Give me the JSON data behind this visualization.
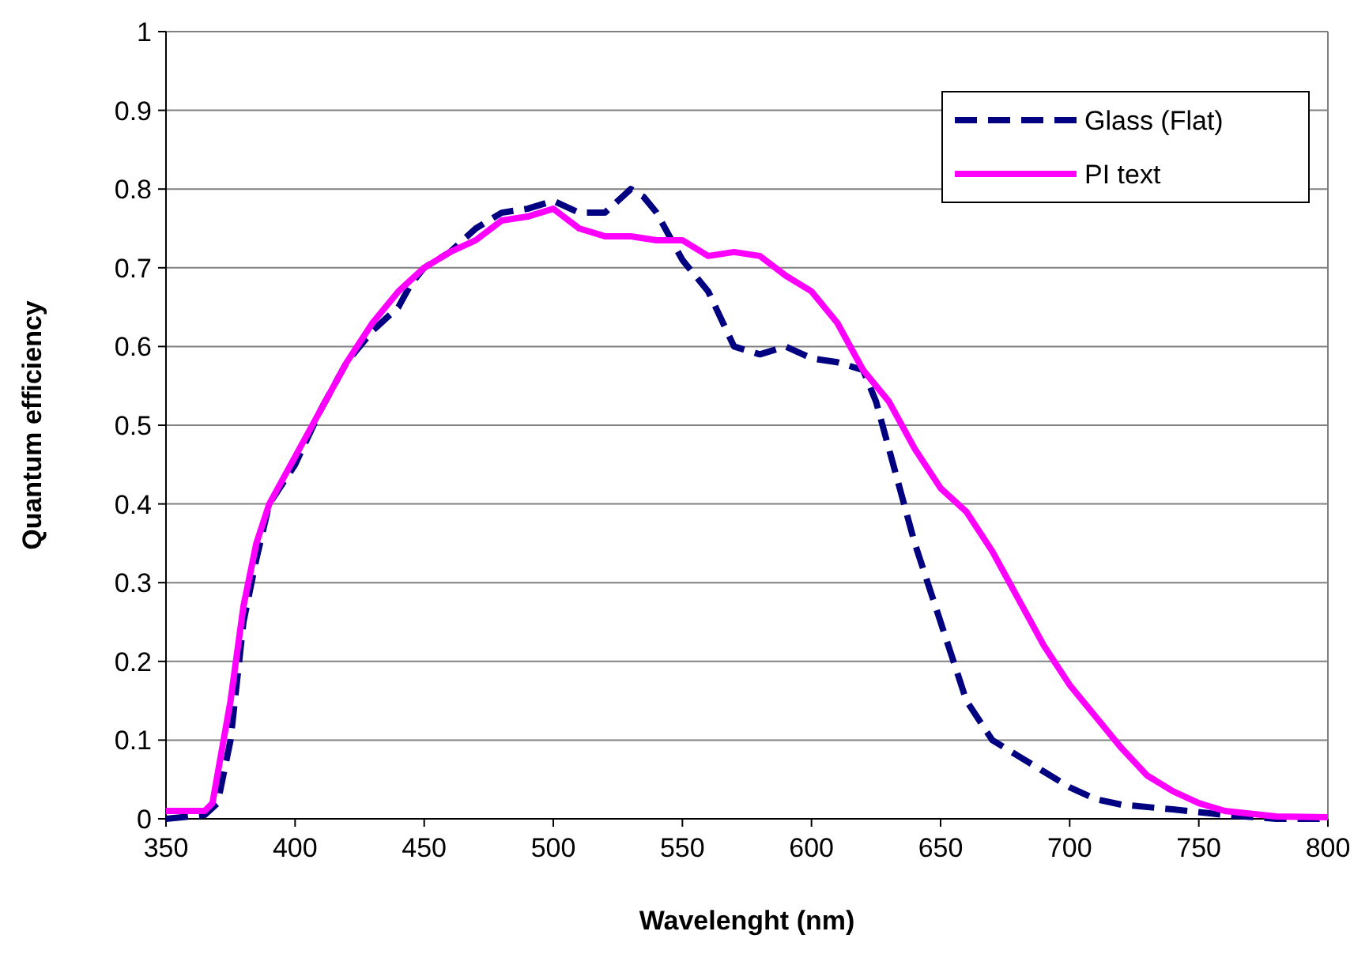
{
  "chart_data": {
    "type": "line",
    "xlabel": "Wavelenght (nm)",
    "ylabel": "Quantum efficiency",
    "xlim": [
      350,
      800
    ],
    "xticks": [
      350,
      400,
      450,
      500,
      550,
      600,
      650,
      700,
      750,
      800
    ],
    "ylim": [
      0,
      1
    ],
    "yticks": [
      0,
      0.1,
      0.2,
      0.3,
      0.4,
      0.5,
      0.6,
      0.7,
      0.8,
      0.9,
      1
    ],
    "grid": "y",
    "legend": "top right",
    "series": [
      {
        "name": "Glass (Flat)",
        "color": "#000080",
        "line_style": "dashed",
        "x": [
          350,
          365,
          370,
          375,
          380,
          385,
          390,
          400,
          410,
          420,
          430,
          440,
          445,
          450,
          460,
          470,
          480,
          490,
          500,
          510,
          520,
          530,
          535,
          540,
          550,
          560,
          570,
          580,
          590,
          600,
          610,
          620,
          625,
          630,
          640,
          650,
          660,
          670,
          680,
          690,
          700,
          710,
          720,
          740,
          760,
          780,
          800
        ],
        "values": [
          0,
          0.005,
          0.02,
          0.1,
          0.25,
          0.33,
          0.4,
          0.45,
          0.52,
          0.58,
          0.62,
          0.65,
          0.68,
          0.7,
          0.72,
          0.75,
          0.77,
          0.775,
          0.785,
          0.77,
          0.77,
          0.8,
          0.79,
          0.77,
          0.71,
          0.67,
          0.6,
          0.59,
          0.6,
          0.585,
          0.58,
          0.57,
          0.53,
          0.47,
          0.35,
          0.25,
          0.15,
          0.1,
          0.08,
          0.06,
          0.04,
          0.025,
          0.018,
          0.012,
          0.005,
          0,
          0
        ]
      },
      {
        "name": "PI text",
        "color": "#ff00ff",
        "line_style": "solid",
        "x": [
          350,
          365,
          368,
          375,
          380,
          385,
          390,
          400,
          410,
          420,
          430,
          440,
          450,
          460,
          470,
          480,
          490,
          500,
          510,
          520,
          530,
          540,
          550,
          560,
          570,
          580,
          590,
          600,
          610,
          620,
          630,
          640,
          650,
          660,
          670,
          680,
          690,
          700,
          710,
          720,
          730,
          740,
          750,
          760,
          780,
          800
        ],
        "values": [
          0.01,
          0.01,
          0.02,
          0.15,
          0.27,
          0.35,
          0.4,
          0.46,
          0.52,
          0.58,
          0.63,
          0.67,
          0.7,
          0.72,
          0.735,
          0.76,
          0.765,
          0.775,
          0.75,
          0.74,
          0.74,
          0.735,
          0.735,
          0.715,
          0.72,
          0.715,
          0.69,
          0.67,
          0.63,
          0.57,
          0.53,
          0.47,
          0.42,
          0.39,
          0.34,
          0.28,
          0.22,
          0.17,
          0.13,
          0.09,
          0.055,
          0.035,
          0.02,
          0.01,
          0.003,
          0.002
        ]
      }
    ]
  }
}
